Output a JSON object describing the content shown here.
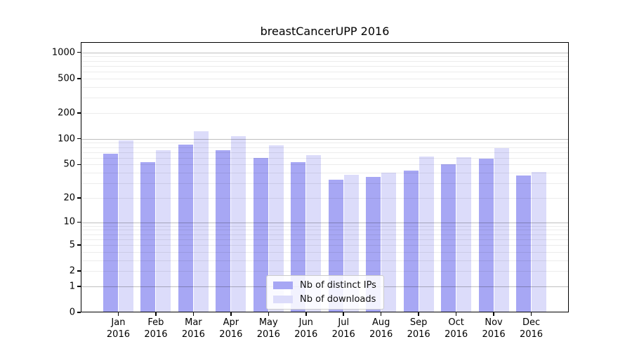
{
  "chart_data": {
    "type": "bar",
    "title": "breastCancerUPP 2016",
    "categories": [
      "Jan",
      "Feb",
      "Mar",
      "Apr",
      "May",
      "Jun",
      "Jul",
      "Aug",
      "Sep",
      "Oct",
      "Nov",
      "Dec"
    ],
    "category_year": "2016",
    "series": [
      {
        "name": "Nb of distinct IPs",
        "color": "#a7a7f4",
        "values": [
          67,
          53,
          86,
          74,
          60,
          53,
          33,
          36,
          42,
          50,
          59,
          37
        ]
      },
      {
        "name": "Nb of downloads",
        "color": "#dcdcfa",
        "values": [
          95,
          74,
          122,
          108,
          84,
          65,
          38,
          40,
          62,
          61,
          78,
          41
        ]
      }
    ],
    "xlabel": "",
    "ylabel": "",
    "yscale": "log1p",
    "yticks": [
      0,
      1,
      2,
      5,
      10,
      20,
      50,
      100,
      200,
      500,
      1000
    ],
    "ylim": [
      0,
      1300
    ],
    "grid": "on",
    "major_grid_values": [
      1,
      10,
      100,
      1000
    ],
    "legend_position": "lower-center",
    "major_grid_color": "#c8c8c8",
    "minor_grid_color": "#ececec"
  }
}
